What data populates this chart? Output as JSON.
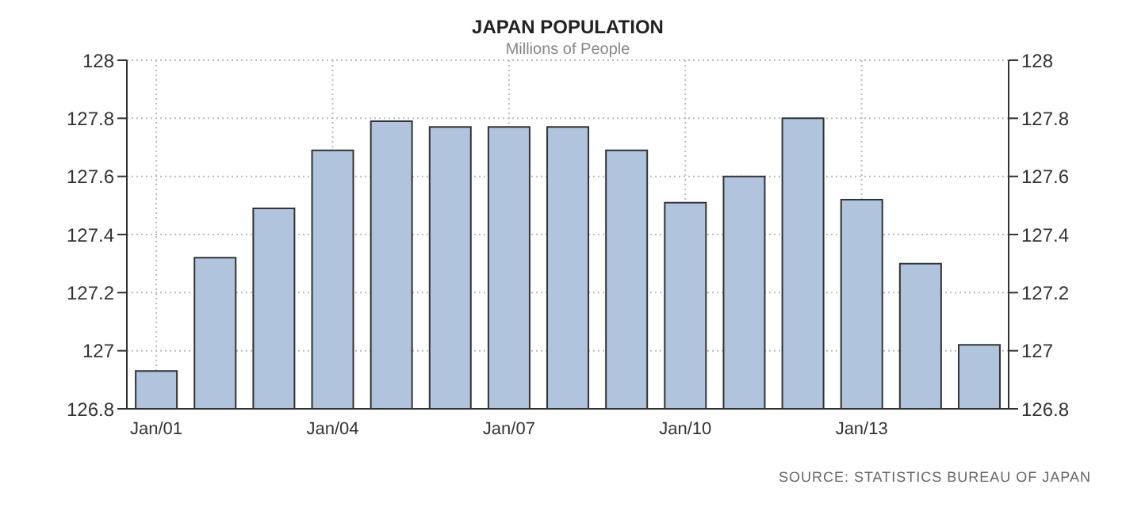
{
  "chart_data": {
    "type": "bar",
    "title": "JAPAN POPULATION",
    "subtitle": "Millions of People",
    "categories": [
      "Jan/01",
      null,
      null,
      "Jan/04",
      null,
      null,
      "Jan/07",
      null,
      null,
      "Jan/10",
      null,
      null,
      "Jan/13",
      null,
      null
    ],
    "values": [
      126.93,
      127.32,
      127.49,
      127.69,
      127.79,
      127.77,
      127.77,
      127.77,
      127.69,
      127.51,
      127.6,
      127.8,
      127.52,
      127.3,
      127.02
    ],
    "color": "#b0c4de",
    "ylim": [
      126.8,
      128
    ],
    "yticks": [
      126.8,
      127,
      127.2,
      127.4,
      127.6,
      127.8,
      128
    ],
    "y2lim": [
      126.8,
      128
    ],
    "y2ticks": [
      126.8,
      127,
      127.2,
      127.4,
      127.6,
      127.8,
      128
    ],
    "grid": true,
    "annotations": [
      "SOURCE: STATISTICS BUREAU OF JAPAN"
    ]
  }
}
